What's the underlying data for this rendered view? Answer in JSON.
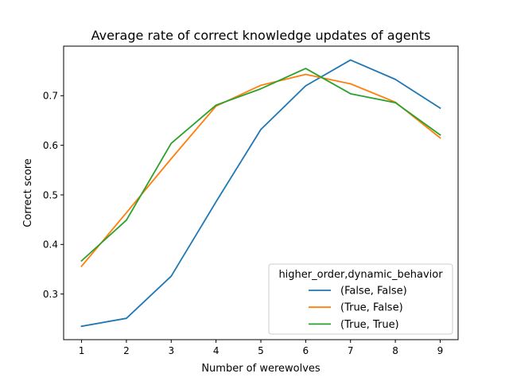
{
  "chart_data": {
    "type": "line",
    "title": "Average rate of correct knowledge updates of agents",
    "xlabel": "Number of werewolves",
    "ylabel": "Correct score",
    "x": [
      1,
      2,
      3,
      4,
      5,
      6,
      7,
      8,
      9
    ],
    "xlim": [
      0.6,
      9.4
    ],
    "ylim": [
      0.208,
      0.8
    ],
    "yticks": [
      0.3,
      0.4,
      0.5,
      0.6,
      0.7
    ],
    "ytick_labels": [
      "0.3",
      "0.4",
      "0.5",
      "0.6",
      "0.7"
    ],
    "xtick_labels": [
      "1",
      "2",
      "3",
      "4",
      "5",
      "6",
      "7",
      "8",
      "9"
    ],
    "grid": false,
    "legend": {
      "title": "higher_order,dynamic_behavior",
      "placement": "lower right"
    },
    "series": [
      {
        "name": "(False, False)",
        "color": "#1f77b4",
        "values": [
          0.235,
          0.251,
          0.336,
          0.486,
          0.632,
          0.72,
          0.772,
          0.733,
          0.675
        ]
      },
      {
        "name": "(True, False)",
        "color": "#ff7f0e",
        "values": [
          0.356,
          0.464,
          0.573,
          0.679,
          0.721,
          0.743,
          0.724,
          0.687,
          0.615
        ]
      },
      {
        "name": "(True, True)",
        "color": "#2ca02c",
        "values": [
          0.367,
          0.449,
          0.604,
          0.681,
          0.714,
          0.755,
          0.704,
          0.686,
          0.621
        ]
      }
    ]
  }
}
